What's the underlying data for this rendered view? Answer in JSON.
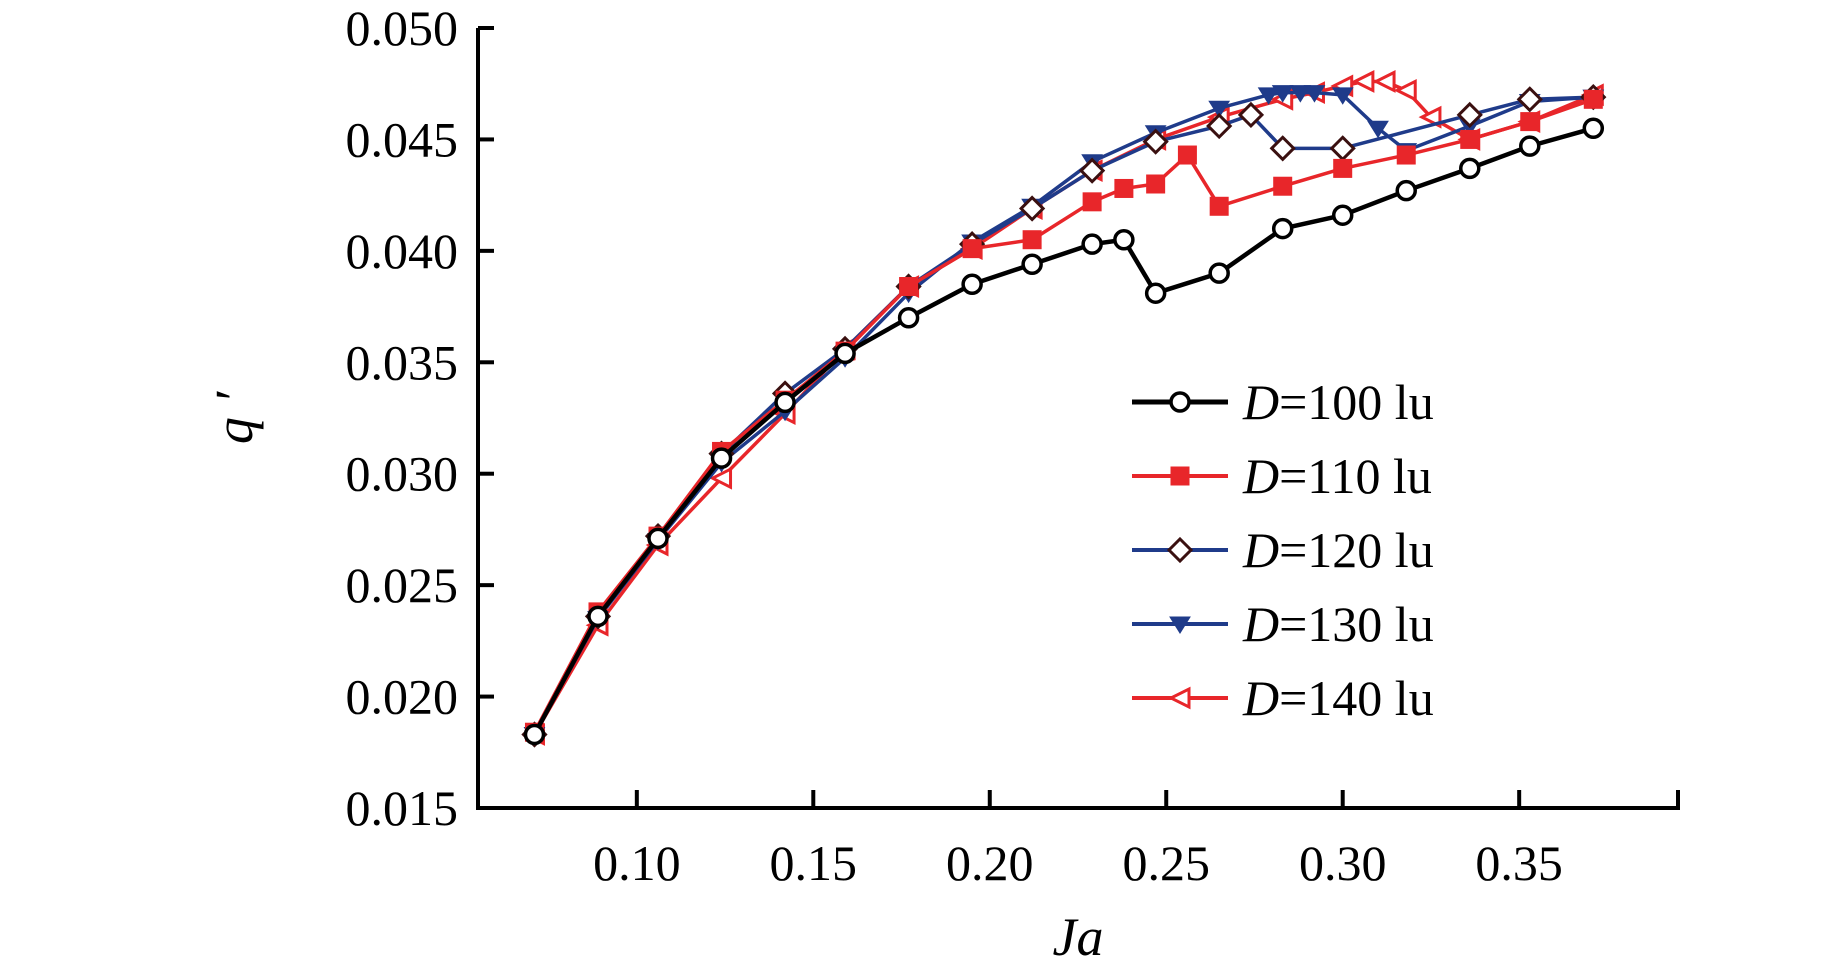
{
  "chart_data": {
    "type": "line",
    "title": "",
    "xlabel": "Ja",
    "ylabel": "q ′",
    "xlim": [
      0.055,
      0.395
    ],
    "ylim": [
      0.015,
      0.05
    ],
    "xticks": [
      0.1,
      0.15,
      0.2,
      0.25,
      0.3,
      0.35
    ],
    "xtick_labels": [
      "0.10",
      "0.15",
      "0.20",
      "0.25",
      "0.30",
      "0.35"
    ],
    "yticks": [
      0.015,
      0.02,
      0.025,
      0.03,
      0.035,
      0.04,
      0.045,
      0.05
    ],
    "ytick_labels": [
      "0.015",
      "0.020",
      "0.025",
      "0.030",
      "0.035",
      "0.040",
      "0.045",
      "0.050"
    ],
    "grid": false,
    "legend_position": "right-center",
    "series": [
      {
        "name": "D=100 lu",
        "legend_var": "D",
        "legend_rest": "=100 lu",
        "color": "#000000",
        "marker": "circle-open",
        "x": [
          0.071,
          0.089,
          0.106,
          0.124,
          0.142,
          0.159,
          0.177,
          0.195,
          0.212,
          0.229,
          0.238,
          0.247,
          0.265,
          0.283,
          0.3,
          0.318,
          0.336,
          0.353,
          0.371
        ],
        "y": [
          0.0183,
          0.0236,
          0.0271,
          0.0307,
          0.0332,
          0.0354,
          0.037,
          0.0385,
          0.0394,
          0.0403,
          0.0405,
          0.0381,
          0.039,
          0.041,
          0.0416,
          0.0427,
          0.0437,
          0.0447,
          0.0455
        ]
      },
      {
        "name": "D=110 lu",
        "legend_var": "D",
        "legend_rest": "=110 lu",
        "color": "#e8262a",
        "marker": "square-filled",
        "x": [
          0.071,
          0.089,
          0.106,
          0.124,
          0.142,
          0.159,
          0.177,
          0.195,
          0.212,
          0.229,
          0.238,
          0.247,
          0.256,
          0.265,
          0.283,
          0.3,
          0.318,
          0.336,
          0.353,
          0.371
        ],
        "y": [
          0.0184,
          0.0238,
          0.0272,
          0.031,
          0.0333,
          0.0355,
          0.0384,
          0.0401,
          0.0405,
          0.0422,
          0.0428,
          0.043,
          0.0443,
          0.042,
          0.0429,
          0.0437,
          0.0443,
          0.045,
          0.0458,
          0.0468
        ]
      },
      {
        "name": "D=120 lu",
        "legend_var": "D",
        "legend_rest": "=120 lu",
        "color": "#1f3b8a",
        "marker": "diamond-open",
        "x": [
          0.071,
          0.089,
          0.106,
          0.124,
          0.142,
          0.159,
          0.177,
          0.195,
          0.212,
          0.229,
          0.247,
          0.265,
          0.274,
          0.283,
          0.3,
          0.336,
          0.353,
          0.371
        ],
        "y": [
          0.0183,
          0.0236,
          0.0272,
          0.0309,
          0.0336,
          0.0356,
          0.0384,
          0.0403,
          0.0419,
          0.0436,
          0.0449,
          0.0456,
          0.0461,
          0.0446,
          0.0446,
          0.0461,
          0.0468,
          0.0469
        ]
      },
      {
        "name": "D=130 lu",
        "legend_var": "D",
        "legend_rest": "=130 lu",
        "color": "#1f3b8a",
        "marker": "triangle-down-filled",
        "x": [
          0.071,
          0.089,
          0.106,
          0.124,
          0.142,
          0.159,
          0.177,
          0.195,
          0.212,
          0.229,
          0.247,
          0.265,
          0.279,
          0.283,
          0.288,
          0.292,
          0.3,
          0.31,
          0.318,
          0.336,
          0.353,
          0.371
        ],
        "y": [
          0.0183,
          0.0235,
          0.027,
          0.0305,
          0.0328,
          0.0352,
          0.0381,
          0.0404,
          0.042,
          0.044,
          0.0453,
          0.0464,
          0.047,
          0.0471,
          0.0471,
          0.0471,
          0.047,
          0.0455,
          0.0445,
          0.0456,
          0.0467,
          0.0469
        ]
      },
      {
        "name": "D=140 lu",
        "legend_var": "D",
        "legend_rest": "=140 lu",
        "color": "#e8262a",
        "marker": "triangle-left-open",
        "x": [
          0.071,
          0.089,
          0.106,
          0.124,
          0.142,
          0.159,
          0.177,
          0.195,
          0.212,
          0.229,
          0.247,
          0.265,
          0.283,
          0.292,
          0.3,
          0.306,
          0.312,
          0.318,
          0.325,
          0.336,
          0.353,
          0.371
        ],
        "y": [
          0.0183,
          0.0232,
          0.0268,
          0.0298,
          0.0327,
          0.0356,
          0.0384,
          0.0401,
          0.0419,
          0.0436,
          0.045,
          0.046,
          0.0468,
          0.0471,
          0.0474,
          0.0476,
          0.0476,
          0.0472,
          0.046,
          0.045,
          0.0458,
          0.047
        ]
      }
    ]
  }
}
